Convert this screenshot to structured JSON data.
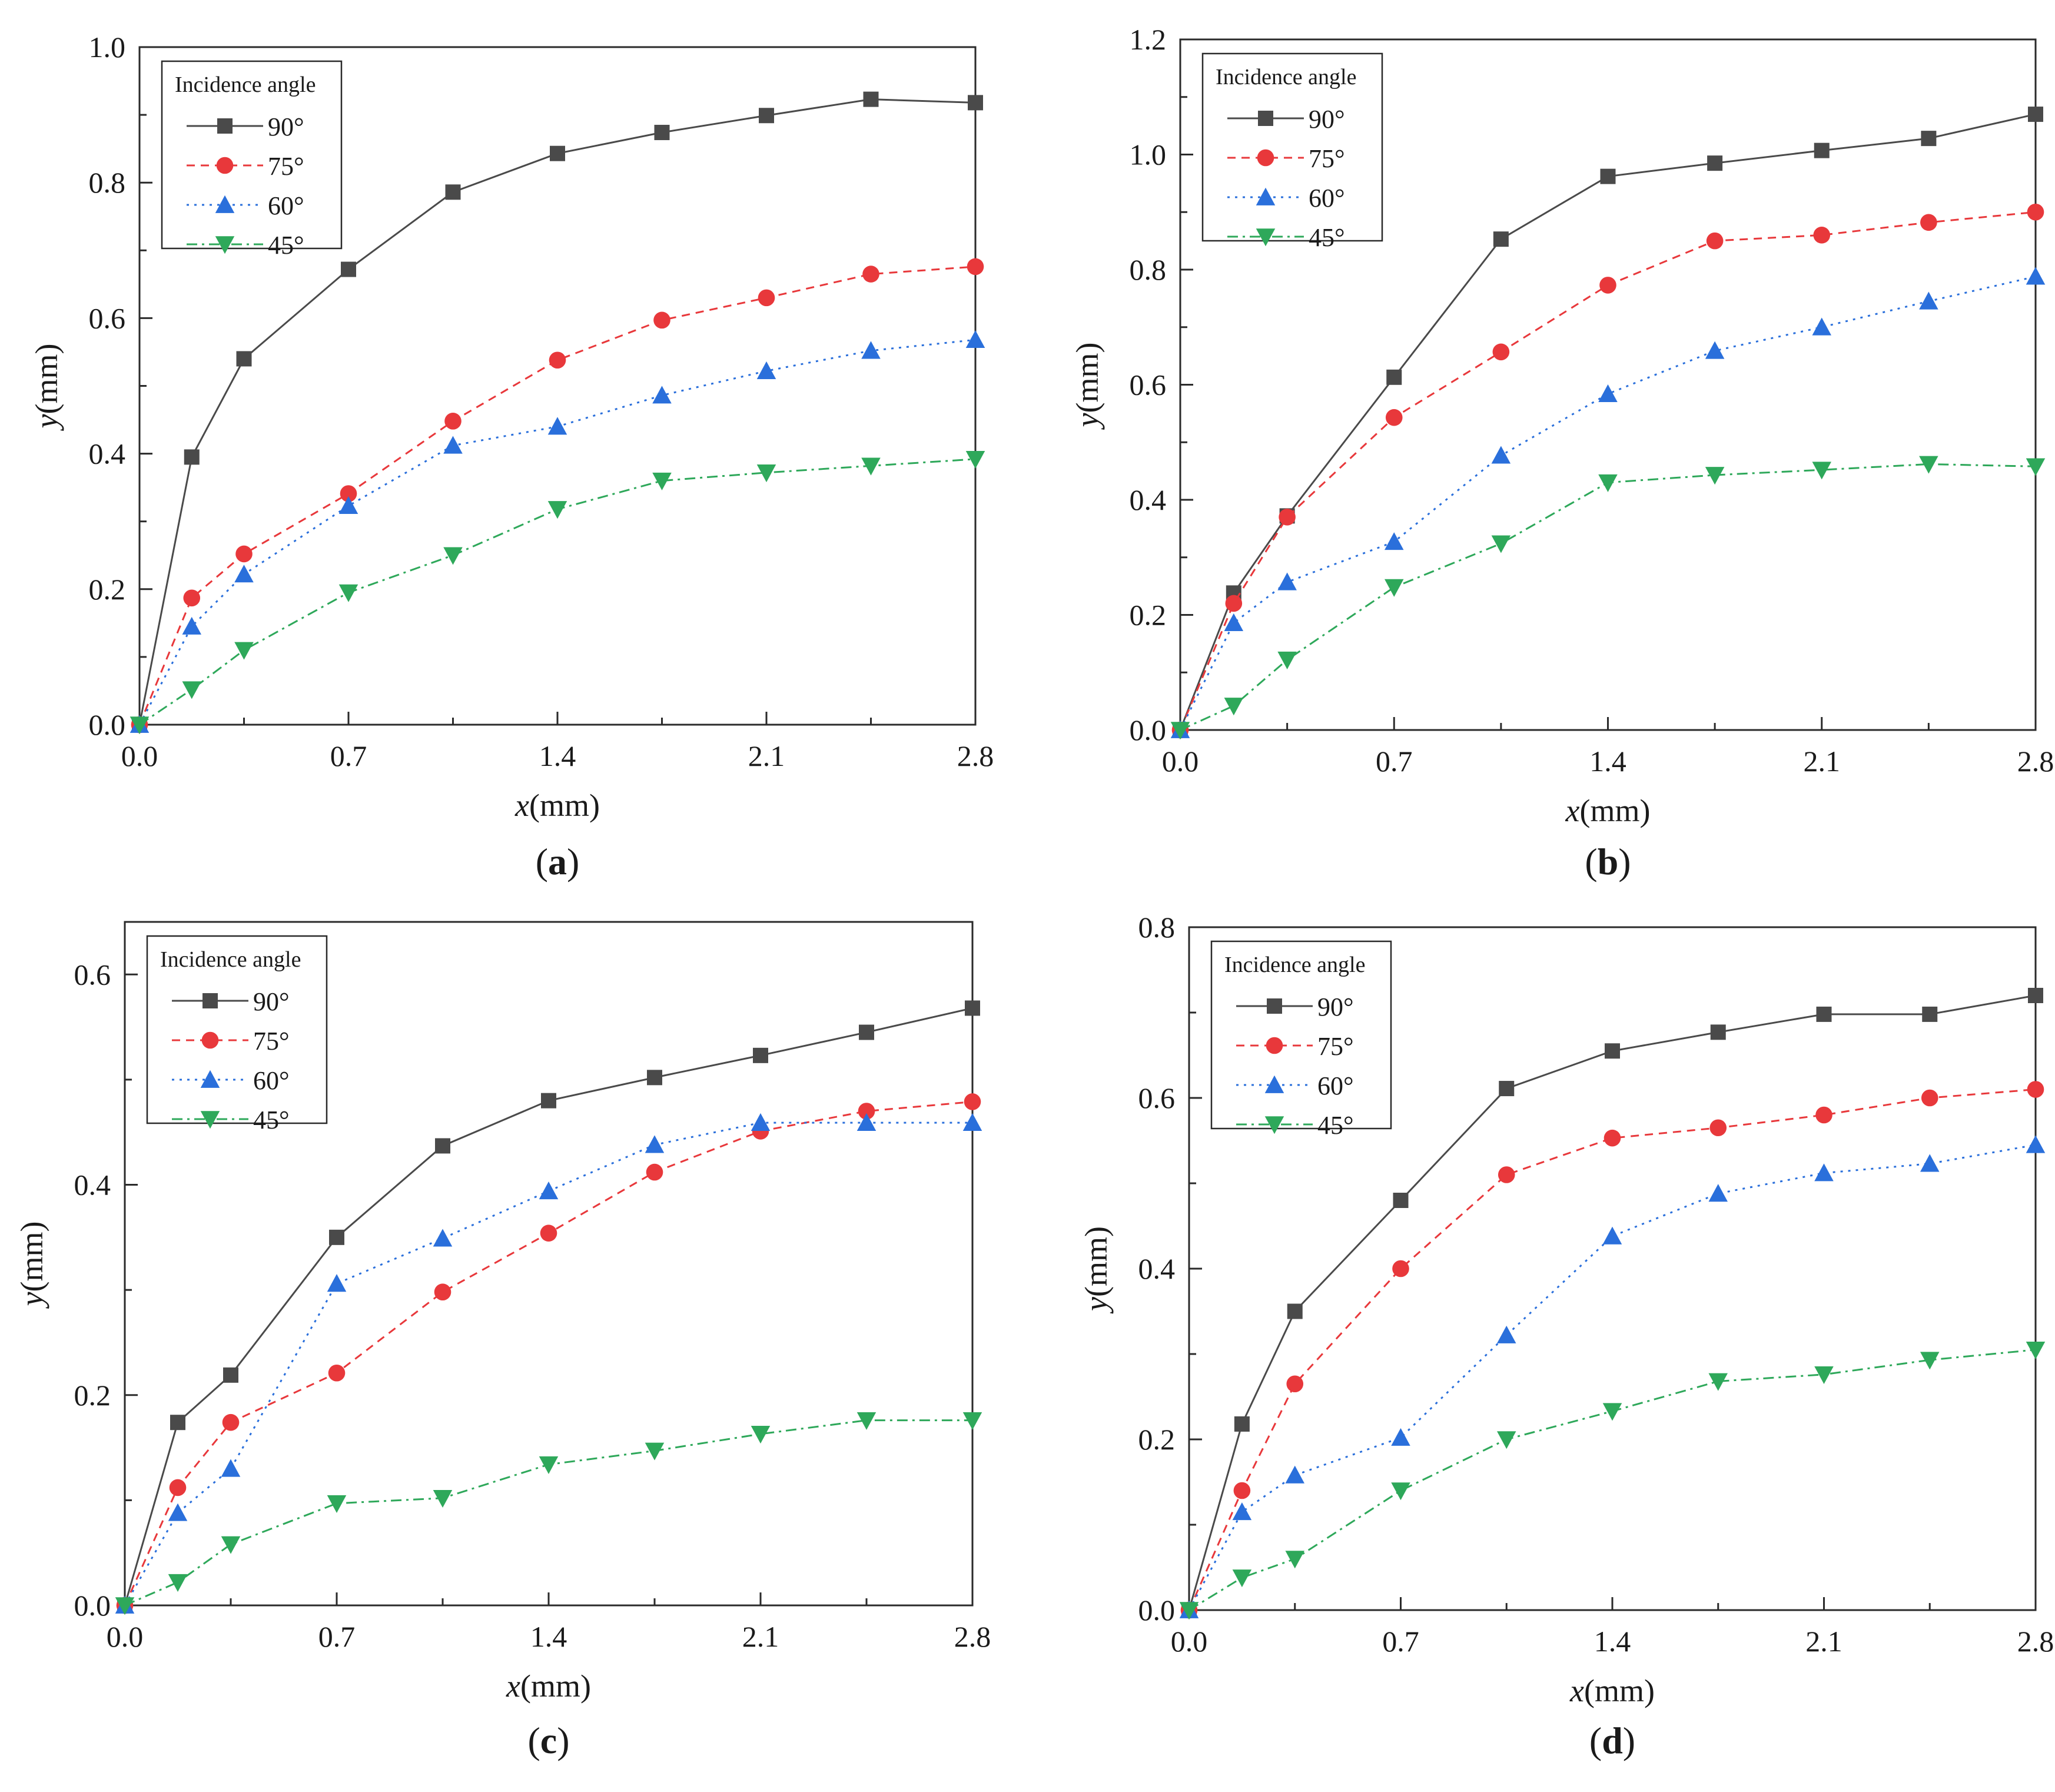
{
  "chart_data": [
    {
      "type": "line",
      "panel_label": "a",
      "xlabel": "x(mm)",
      "ylabel": "y(mm)",
      "xlim": [
        0,
        2.8
      ],
      "ylim": [
        0,
        1.0
      ],
      "xticks": [
        "0.0",
        "0.7",
        "1.4",
        "2.1",
        "2.8"
      ],
      "yticks": [
        "0.0",
        "0.2",
        "0.4",
        "0.6",
        "0.8",
        "1.0"
      ],
      "legend_title": "Incidence angle",
      "x": [
        0,
        0.175,
        0.35,
        0.7,
        1.05,
        1.4,
        1.75,
        2.1,
        2.45,
        2.8
      ],
      "series": [
        {
          "name": "90°",
          "values": [
            0,
            0.395,
            0.54,
            0.672,
            0.786,
            0.843,
            0.874,
            0.899,
            0.923,
            0.918
          ]
        },
        {
          "name": "75°",
          "values": [
            0,
            0.187,
            0.252,
            0.341,
            0.448,
            0.538,
            0.597,
            0.63,
            0.665,
            0.676
          ]
        },
        {
          "name": "60°",
          "values": [
            0,
            0.145,
            0.222,
            0.323,
            0.412,
            0.44,
            0.486,
            0.522,
            0.552,
            0.568
          ]
        },
        {
          "name": "45°",
          "values": [
            0,
            0.052,
            0.11,
            0.195,
            0.25,
            0.318,
            0.36,
            0.372,
            0.382,
            0.392
          ]
        }
      ]
    },
    {
      "type": "line",
      "panel_label": "b",
      "xlabel": "x(mm)",
      "ylabel": "y(mm)",
      "xlim": [
        0,
        2.8
      ],
      "ylim": [
        0,
        1.2
      ],
      "xticks": [
        "0.0",
        "0.7",
        "1.4",
        "2.1",
        "2.8"
      ],
      "yticks": [
        "0.0",
        "0.2",
        "0.4",
        "0.6",
        "0.8",
        "1.0",
        "1.2"
      ],
      "legend_title": "Incidence angle",
      "x": [
        0,
        0.175,
        0.35,
        0.7,
        1.05,
        1.4,
        1.75,
        2.1,
        2.45,
        2.8
      ],
      "series": [
        {
          "name": "90°",
          "values": [
            0,
            0.238,
            0.372,
            0.613,
            0.853,
            0.962,
            0.985,
            1.007,
            1.028,
            1.07
          ]
        },
        {
          "name": "75°",
          "values": [
            0,
            0.22,
            0.37,
            0.543,
            0.657,
            0.773,
            0.85,
            0.86,
            0.882,
            0.9
          ]
        },
        {
          "name": "60°",
          "values": [
            0,
            0.186,
            0.257,
            0.327,
            0.477,
            0.584,
            0.659,
            0.7,
            0.745,
            0.788
          ]
        },
        {
          "name": "45°",
          "values": [
            0,
            0.042,
            0.122,
            0.248,
            0.324,
            0.43,
            0.443,
            0.452,
            0.462,
            0.458
          ]
        }
      ]
    },
    {
      "type": "line",
      "panel_label": "c",
      "xlabel": "x(mm)",
      "ylabel": "y(mm)",
      "xlim": [
        0,
        2.8
      ],
      "ylim": [
        0,
        0.65
      ],
      "xticks": [
        "0.0",
        "0.7",
        "1.4",
        "2.1",
        "2.8"
      ],
      "yticks": [
        "0.0",
        "0.2",
        "0.4",
        "0.6"
      ],
      "legend_title": "Incidence angle",
      "x": [
        0,
        0.175,
        0.35,
        0.7,
        1.05,
        1.4,
        1.75,
        2.1,
        2.45,
        2.8
      ],
      "series": [
        {
          "name": "90°",
          "values": [
            0,
            0.174,
            0.219,
            0.35,
            0.437,
            0.48,
            0.502,
            0.523,
            0.545,
            0.568
          ]
        },
        {
          "name": "75°",
          "values": [
            0,
            0.112,
            0.174,
            0.221,
            0.298,
            0.354,
            0.412,
            0.451,
            0.47,
            0.479
          ]
        },
        {
          "name": "60°",
          "values": [
            0,
            0.088,
            0.13,
            0.306,
            0.349,
            0.394,
            0.438,
            0.459,
            0.459,
            0.459
          ]
        },
        {
          "name": "45°",
          "values": [
            0,
            0.022,
            0.058,
            0.097,
            0.102,
            0.134,
            0.147,
            0.163,
            0.176,
            0.176
          ]
        }
      ]
    },
    {
      "type": "line",
      "panel_label": "d",
      "xlabel": "x(mm)",
      "ylabel": "y(mm)",
      "xlim": [
        0,
        2.8
      ],
      "ylim": [
        0,
        0.8
      ],
      "xticks": [
        "0.0",
        "0.7",
        "1.4",
        "2.1",
        "2.8"
      ],
      "yticks": [
        "0.0",
        "0.2",
        "0.4",
        "0.6",
        "0.8"
      ],
      "legend_title": "Incidence angle",
      "x": [
        0,
        0.175,
        0.35,
        0.7,
        1.05,
        1.4,
        1.75,
        2.1,
        2.45,
        2.8
      ],
      "series": [
        {
          "name": "90°",
          "values": [
            0,
            0.218,
            0.35,
            0.48,
            0.611,
            0.655,
            0.677,
            0.698,
            0.698,
            0.72
          ]
        },
        {
          "name": "75°",
          "values": [
            0,
            0.14,
            0.265,
            0.4,
            0.51,
            0.553,
            0.565,
            0.58,
            0.6,
            0.61
          ]
        },
        {
          "name": "60°",
          "values": [
            0,
            0.115,
            0.158,
            0.202,
            0.322,
            0.438,
            0.488,
            0.512,
            0.523,
            0.545
          ]
        },
        {
          "name": "45°",
          "values": [
            0,
            0.038,
            0.06,
            0.14,
            0.2,
            0.233,
            0.268,
            0.276,
            0.293,
            0.305
          ]
        }
      ]
    }
  ],
  "colors": {
    "s90": "#4a4a4a",
    "s75": "#e8383b",
    "s60": "#2a6fdb",
    "s45": "#2ea85a"
  }
}
